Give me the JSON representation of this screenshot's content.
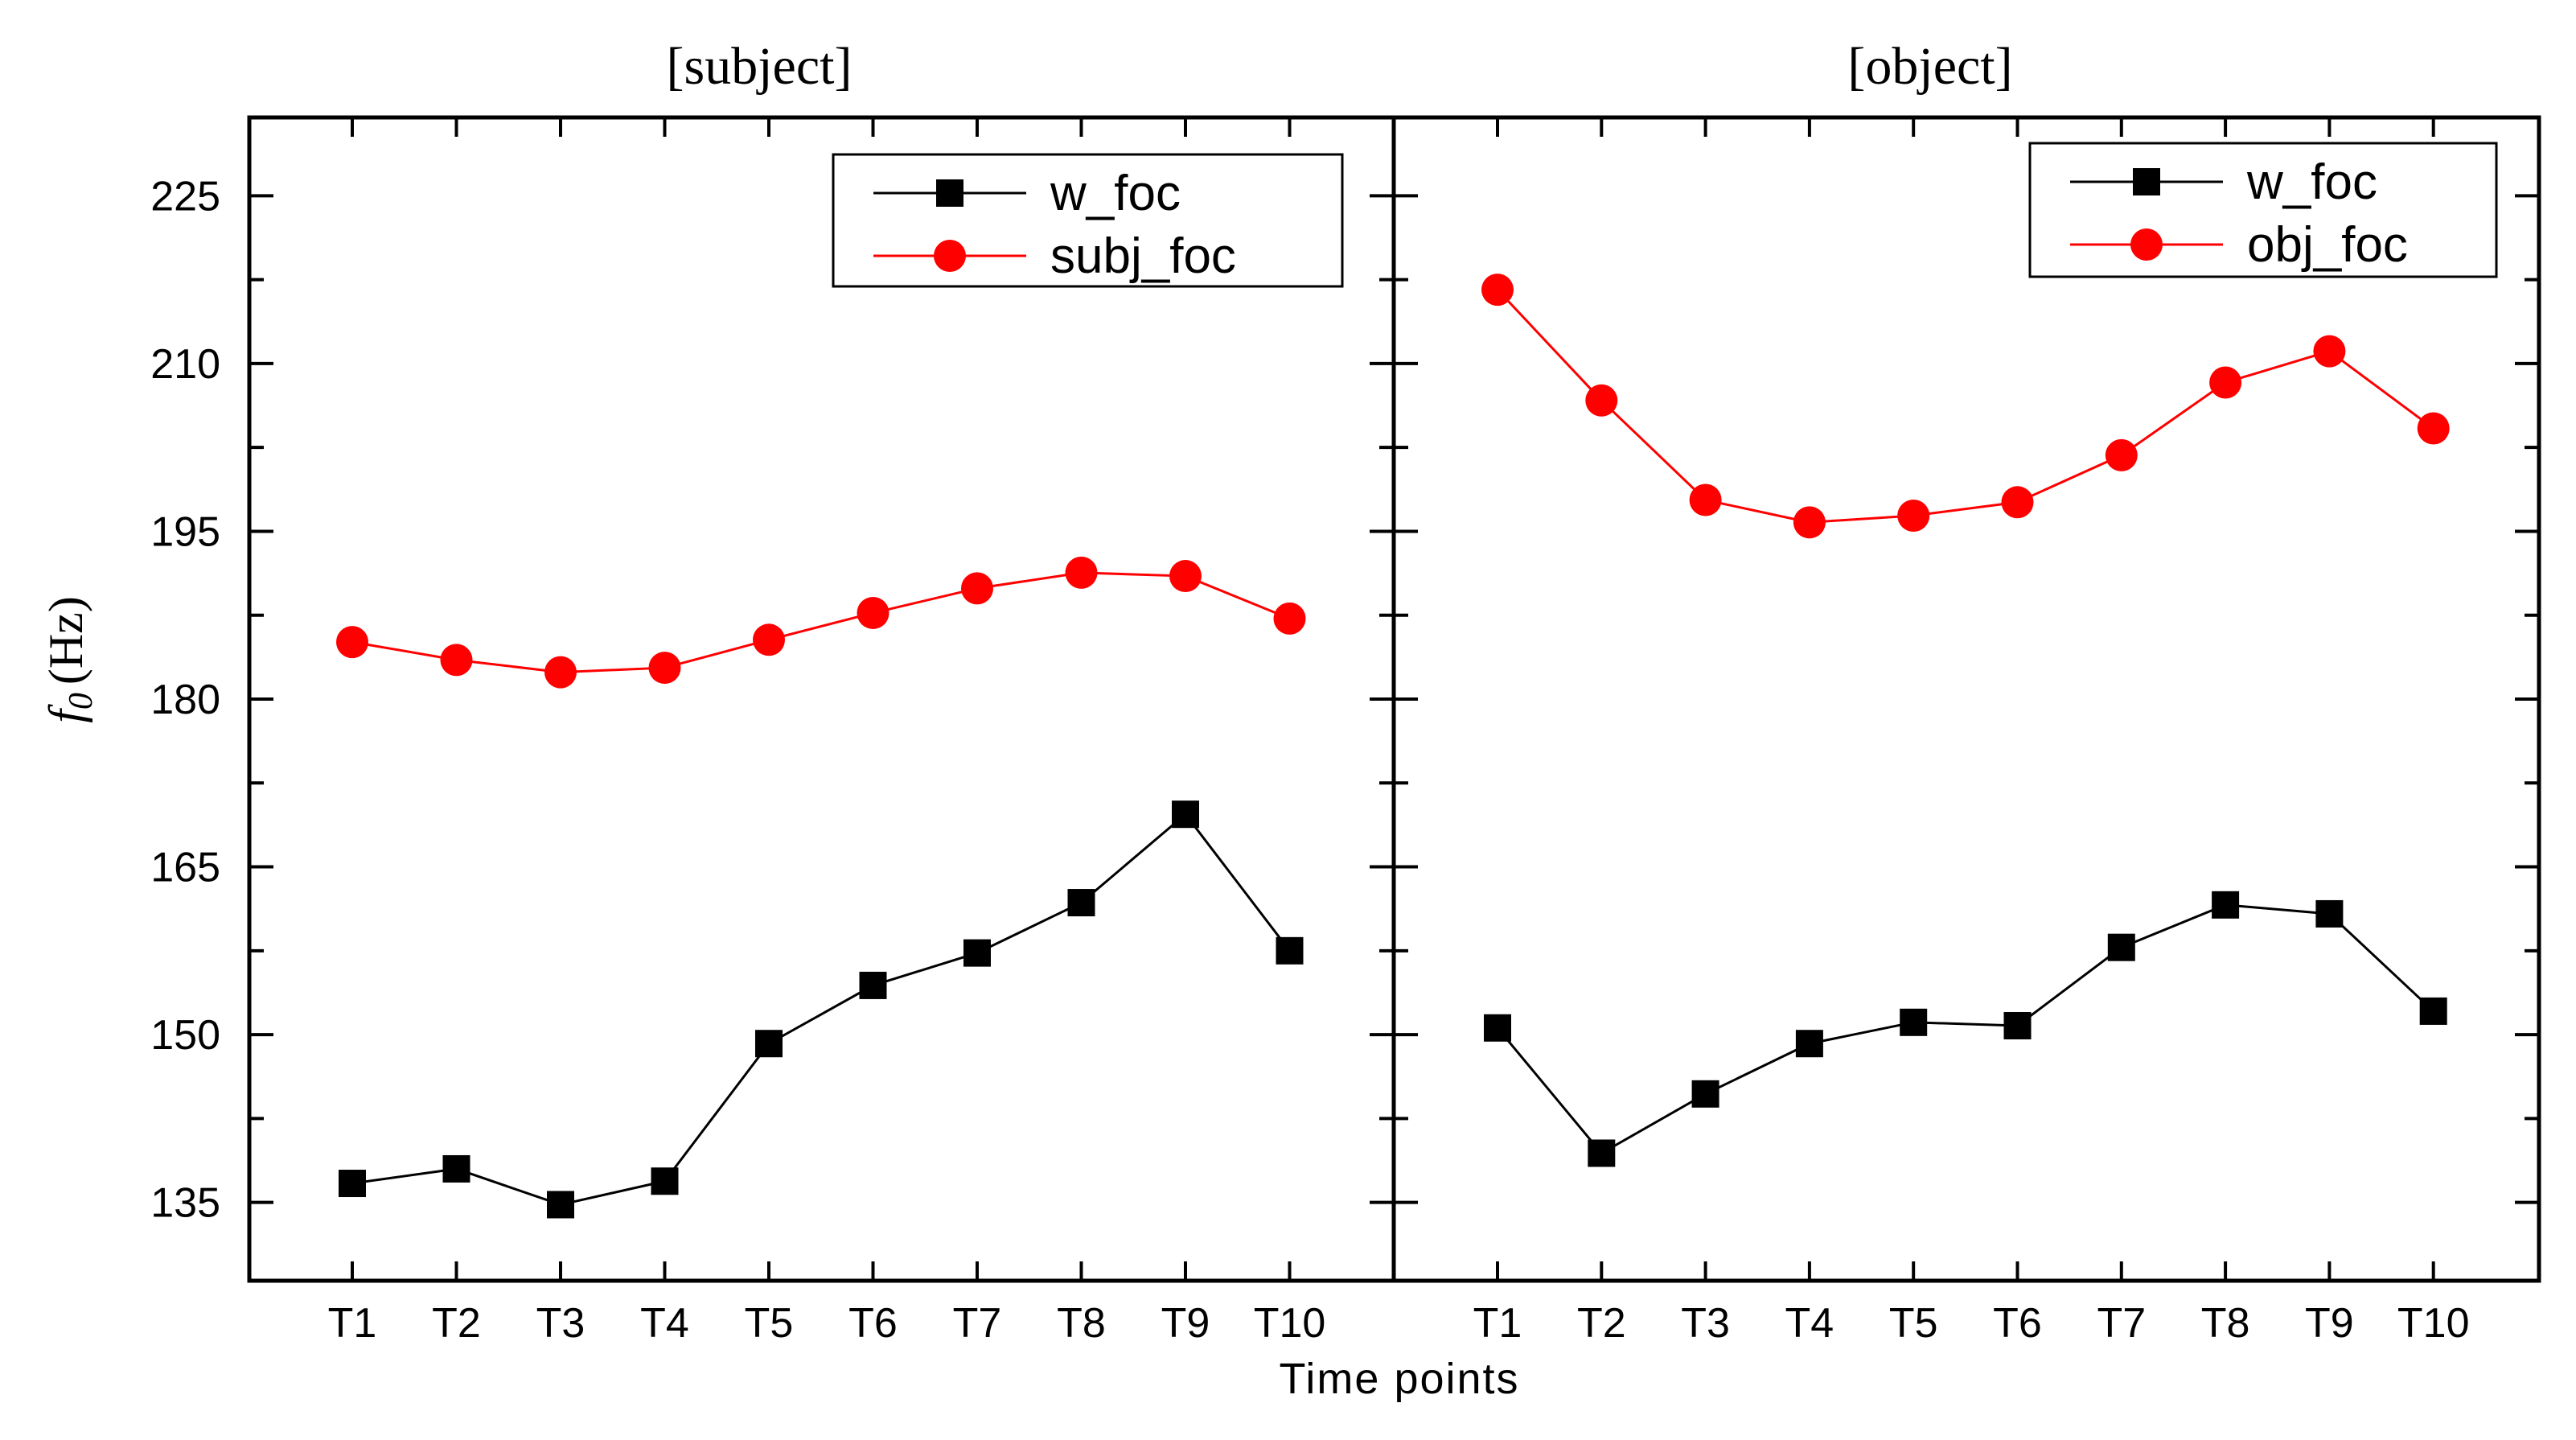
{
  "chart_data": [
    {
      "type": "line",
      "title": "[subject]",
      "categories": [
        "T1",
        "T2",
        "T3",
        "T4",
        "T5",
        "T6",
        "T7",
        "T8",
        "T9",
        "T10"
      ],
      "ylim": [
        128,
        232
      ],
      "yticks": [
        "135",
        "150",
        "165",
        "180",
        "195",
        "210",
        "225"
      ],
      "ylabel_italic": "f",
      "ylabel_sub": "0",
      "ylabel_unit": "(Hz)",
      "xlabel": "Time points",
      "legend_position": "top-right",
      "series": [
        {
          "name": "w_foc",
          "color": "#000000",
          "marker": "square",
          "values": [
            136.7,
            138.0,
            134.8,
            136.9,
            149.2,
            154.4,
            157.3,
            161.8,
            169.7,
            157.5
          ]
        },
        {
          "name": "subj_foc",
          "color": "#ff0000",
          "marker": "circle",
          "values": [
            185.1,
            183.5,
            182.4,
            182.8,
            185.3,
            187.7,
            189.9,
            191.3,
            191.0,
            187.2
          ]
        }
      ]
    },
    {
      "type": "line",
      "title": "[object]",
      "categories": [
        "T1",
        "T2",
        "T3",
        "T4",
        "T5",
        "T6",
        "T7",
        "T8",
        "T9",
        "T10"
      ],
      "ylim": [
        128,
        232
      ],
      "legend_position": "top-right",
      "series": [
        {
          "name": "w_foc",
          "color": "#000000",
          "marker": "square",
          "values": [
            150.6,
            139.4,
            144.7,
            149.2,
            151.1,
            150.8,
            157.8,
            161.6,
            160.8,
            152.1
          ]
        },
        {
          "name": "obj_foc",
          "color": "#ff0000",
          "marker": "circle",
          "values": [
            216.6,
            206.7,
            197.8,
            195.8,
            196.4,
            197.6,
            201.8,
            208.3,
            211.1,
            204.2
          ]
        }
      ]
    }
  ]
}
